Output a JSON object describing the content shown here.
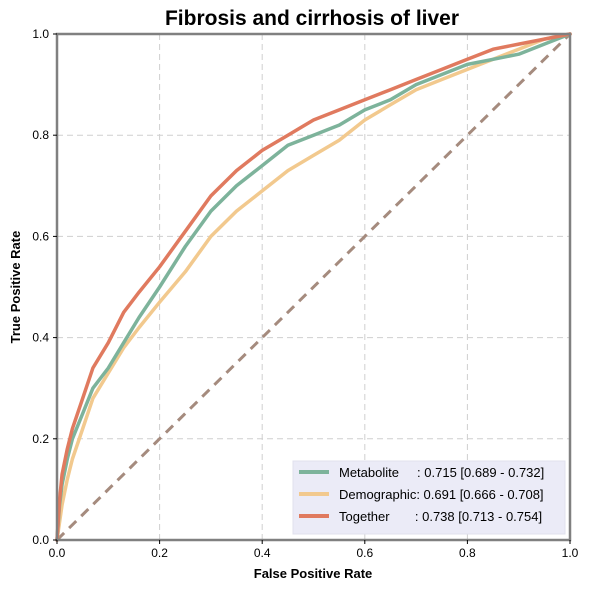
{
  "chart_data": {
    "type": "line",
    "title": "Fibrosis and cirrhosis of liver",
    "xlabel": "False Positive Rate",
    "ylabel": "True Positive Rate",
    "xlim": [
      0,
      1
    ],
    "ylim": [
      0,
      1
    ],
    "xticks": [
      "0.0",
      "0.2",
      "0.4",
      "0.6",
      "0.8",
      "1.0"
    ],
    "yticks": [
      "0.0",
      "0.2",
      "0.4",
      "0.6",
      "0.8",
      "1.0"
    ],
    "grid": true,
    "legend_position": "bottom-right",
    "reference_line": {
      "x": [
        0,
        1
      ],
      "y": [
        0,
        1
      ],
      "color": "#a58b7e"
    },
    "series": [
      {
        "name": "Metabolite",
        "label_suffix": "     : 0.715 [0.689 - 0.732]",
        "color": "#7db39b",
        "x": [
          0,
          0.005,
          0.01,
          0.02,
          0.03,
          0.05,
          0.07,
          0.1,
          0.13,
          0.16,
          0.2,
          0.25,
          0.3,
          0.35,
          0.4,
          0.45,
          0.5,
          0.55,
          0.6,
          0.65,
          0.7,
          0.75,
          0.8,
          0.85,
          0.9,
          0.95,
          1.0
        ],
        "y": [
          0,
          0.07,
          0.11,
          0.16,
          0.2,
          0.25,
          0.3,
          0.34,
          0.39,
          0.44,
          0.5,
          0.58,
          0.65,
          0.7,
          0.74,
          0.78,
          0.8,
          0.82,
          0.85,
          0.87,
          0.9,
          0.92,
          0.94,
          0.95,
          0.96,
          0.98,
          1.0
        ]
      },
      {
        "name": "Demographic",
        "label_suffix": ": 0.691 [0.666 - 0.708]",
        "color": "#f2c98e",
        "x": [
          0,
          0.01,
          0.02,
          0.03,
          0.05,
          0.07,
          0.1,
          0.13,
          0.16,
          0.2,
          0.25,
          0.3,
          0.35,
          0.4,
          0.45,
          0.5,
          0.55,
          0.6,
          0.65,
          0.7,
          0.75,
          0.8,
          0.85,
          0.9,
          0.95,
          1.0
        ],
        "y": [
          0,
          0.07,
          0.12,
          0.16,
          0.22,
          0.28,
          0.33,
          0.38,
          0.42,
          0.47,
          0.53,
          0.6,
          0.65,
          0.69,
          0.73,
          0.76,
          0.79,
          0.83,
          0.86,
          0.89,
          0.91,
          0.93,
          0.95,
          0.97,
          0.99,
          1.0
        ]
      },
      {
        "name": "Together",
        "label_suffix": "       : 0.738 [0.713 - 0.754]",
        "color": "#e07a5f",
        "x": [
          0,
          0.005,
          0.01,
          0.02,
          0.03,
          0.05,
          0.07,
          0.1,
          0.13,
          0.16,
          0.2,
          0.25,
          0.3,
          0.35,
          0.4,
          0.45,
          0.5,
          0.55,
          0.6,
          0.65,
          0.7,
          0.75,
          0.8,
          0.85,
          0.9,
          0.95,
          1.0
        ],
        "y": [
          0,
          0.08,
          0.13,
          0.18,
          0.22,
          0.28,
          0.34,
          0.39,
          0.45,
          0.49,
          0.54,
          0.61,
          0.68,
          0.73,
          0.77,
          0.8,
          0.83,
          0.85,
          0.87,
          0.89,
          0.91,
          0.93,
          0.95,
          0.97,
          0.98,
          0.99,
          1.0
        ]
      }
    ]
  }
}
